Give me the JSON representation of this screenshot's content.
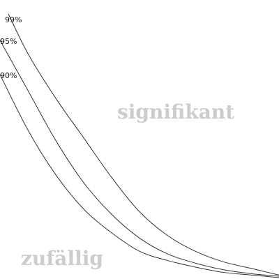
{
  "chart_data": {
    "type": "line",
    "title": "",
    "xlabel": "",
    "ylabel": "",
    "grid": false,
    "legend": "none",
    "colors": {
      "curve": "#333333",
      "label": "#111111",
      "region_label": "#cccccc"
    },
    "series": [
      {
        "name": "99%",
        "points": [
          [
            0.03,
            1.0
          ],
          [
            0.1,
            0.85
          ],
          [
            0.2,
            0.68
          ],
          [
            0.3,
            0.53
          ],
          [
            0.4,
            0.38
          ],
          [
            0.5,
            0.25
          ],
          [
            0.6,
            0.16
          ],
          [
            0.7,
            0.1
          ],
          [
            0.8,
            0.06
          ],
          [
            0.9,
            0.035
          ],
          [
            1.0,
            0.01
          ]
        ]
      },
      {
        "name": "95%",
        "points": [
          [
            0.0,
            0.9
          ],
          [
            0.1,
            0.71
          ],
          [
            0.2,
            0.52
          ],
          [
            0.3,
            0.36
          ],
          [
            0.4,
            0.24
          ],
          [
            0.5,
            0.15
          ],
          [
            0.6,
            0.09
          ],
          [
            0.7,
            0.055
          ],
          [
            0.8,
            0.03
          ],
          [
            0.9,
            0.015
          ],
          [
            1.0,
            0.005
          ]
        ]
      },
      {
        "name": "90%",
        "points": [
          [
            0.0,
            0.77
          ],
          [
            0.1,
            0.56
          ],
          [
            0.2,
            0.39
          ],
          [
            0.3,
            0.26
          ],
          [
            0.4,
            0.17
          ],
          [
            0.5,
            0.1
          ],
          [
            0.6,
            0.065
          ],
          [
            0.7,
            0.04
          ],
          [
            0.8,
            0.02
          ],
          [
            0.9,
            0.01
          ],
          [
            1.0,
            0.0
          ]
        ]
      }
    ],
    "annotations": {
      "upper_region": "signifikant",
      "lower_region": "zufällig"
    }
  }
}
